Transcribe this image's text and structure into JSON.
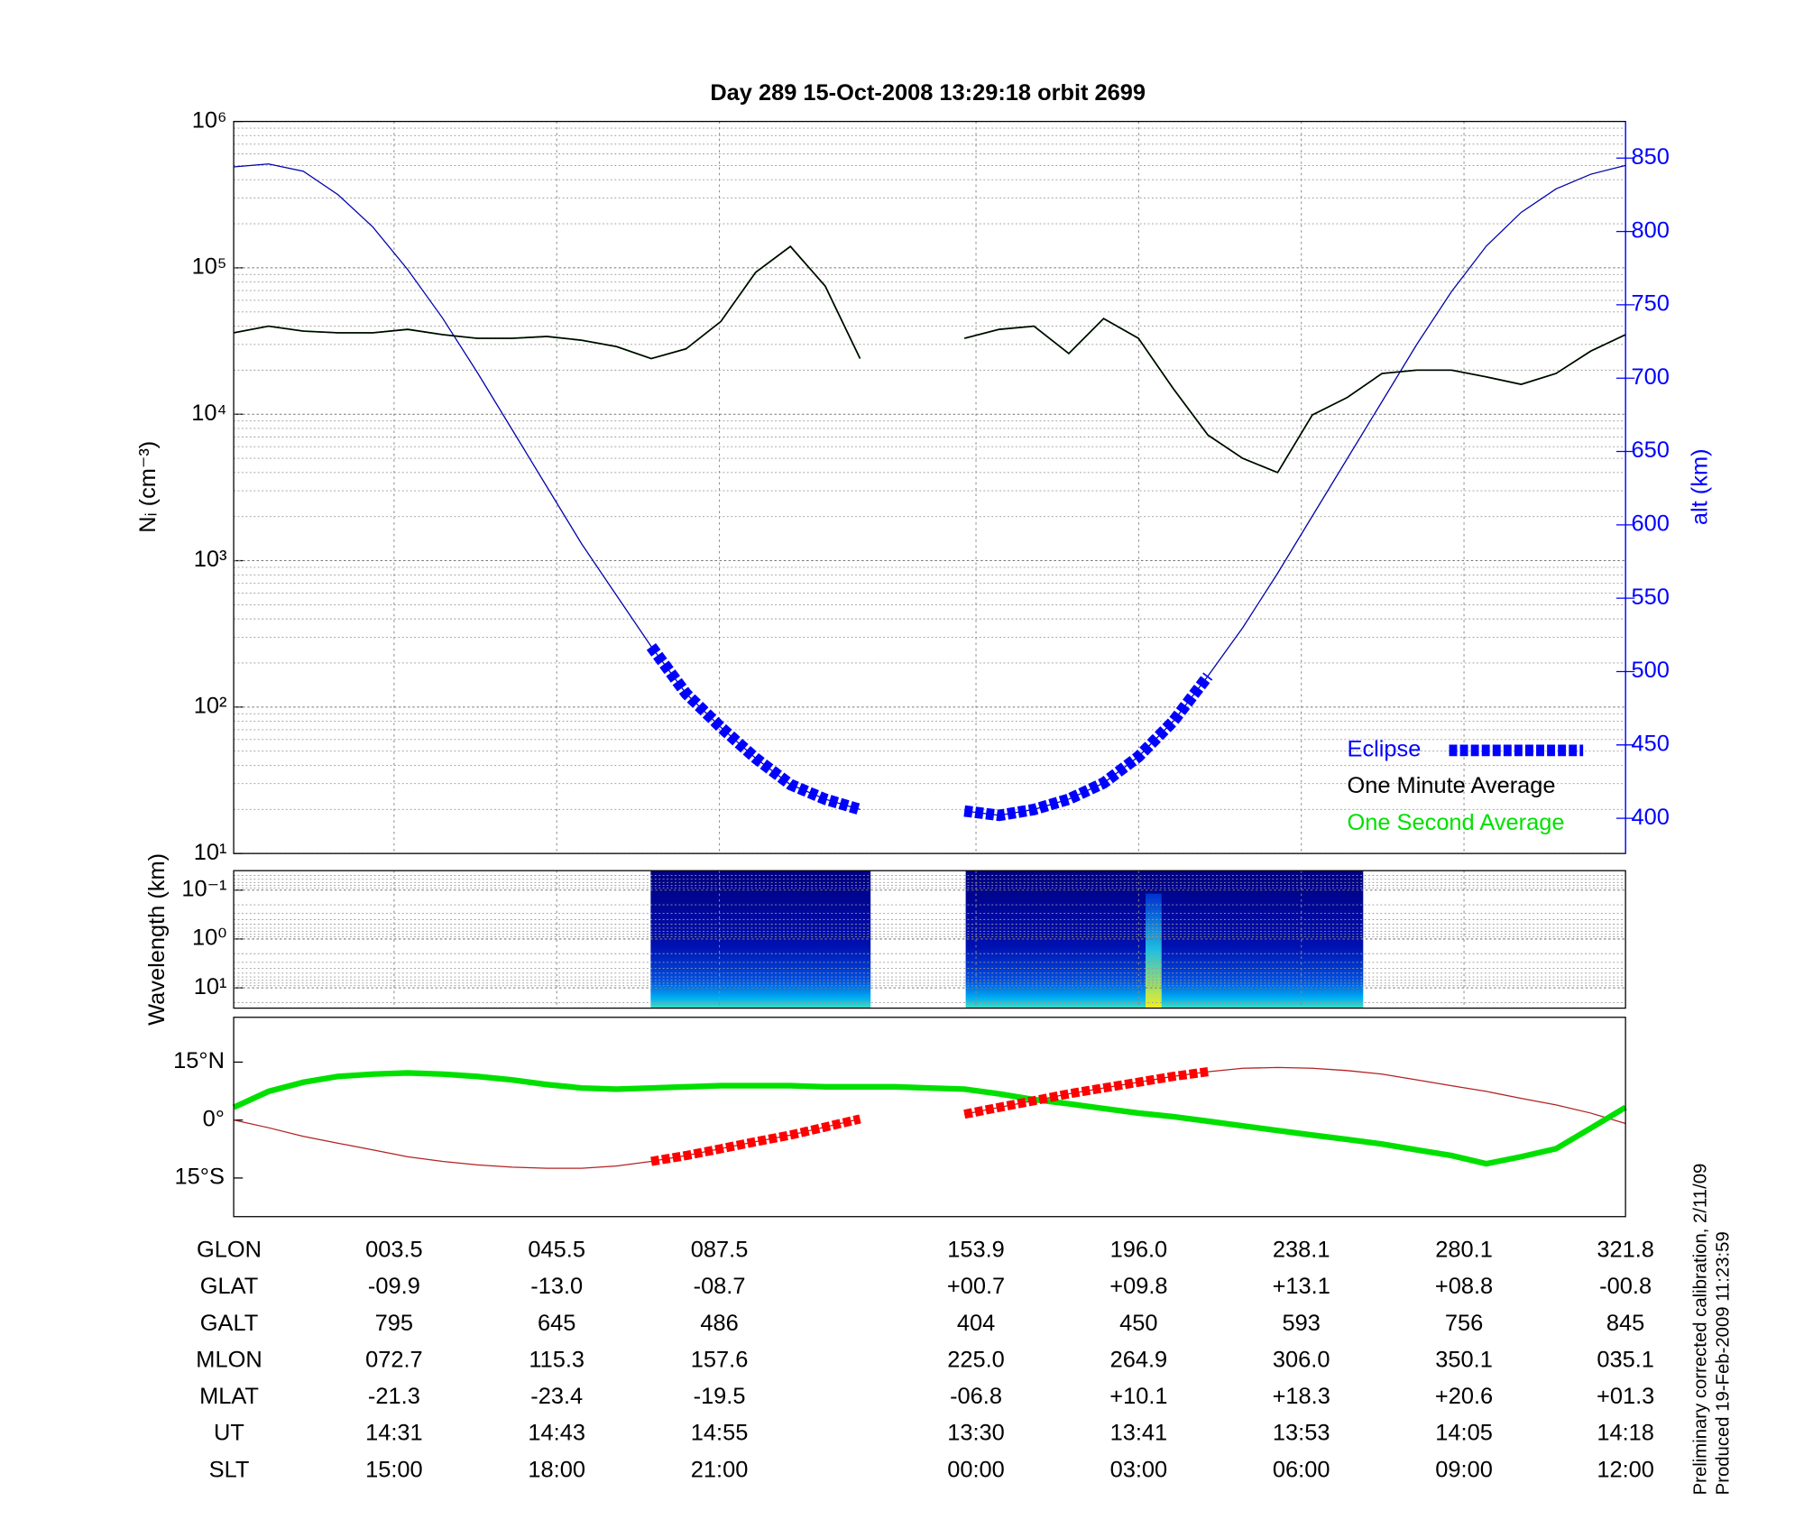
{
  "chart_data": [
    {
      "type": "line",
      "title": "Day 289  15-Oct-2008 13:29:18   orbit 2699",
      "ylabel": "Nᵢ (cm⁻³)",
      "y2label": "alt (km)",
      "ylog": true,
      "ylim": [
        10,
        1000000
      ],
      "yticks": [
        {
          "value": 10,
          "label": "10¹"
        },
        {
          "value": 100,
          "label": "10²"
        },
        {
          "value": 1000,
          "label": "10³"
        },
        {
          "value": 10000,
          "label": "10⁴"
        },
        {
          "value": 100000,
          "label": "10⁵"
        },
        {
          "value": 1000000,
          "label": "10⁶"
        }
      ],
      "y2lim": [
        376,
        875
      ],
      "y2ticks": [
        400,
        450,
        500,
        550,
        600,
        650,
        700,
        750,
        800,
        850
      ],
      "grid": true,
      "legend": "lower right",
      "series": [
        {
          "name": "Eclipse",
          "color": "#0000ff",
          "axis": "y2",
          "values": [
            null,
            null,
            null,
            null,
            null,
            null,
            null,
            null,
            null,
            null,
            null,
            null,
            517,
            485,
            462,
            441,
            423,
            413,
            406,
            null,
            null,
            405,
            402,
            406,
            413,
            424,
            442,
            466,
            497,
            null,
            null,
            null,
            null,
            null,
            null,
            null,
            null,
            null,
            null,
            null,
            null
          ]
        },
        {
          "name": "One Minute Average",
          "color": "#000000",
          "values": [
            36000,
            40000,
            37000,
            36000,
            36000,
            38000,
            35000,
            33000,
            33000,
            34000,
            32000,
            29000,
            24000,
            28000,
            43000,
            93000,
            140000,
            75000,
            24000,
            null,
            null,
            33000,
            38000,
            40000,
            26000,
            45000,
            33000,
            15000,
            7200,
            5000,
            4000,
            9900,
            13000,
            19000,
            20000,
            20000,
            18000,
            16000,
            19000,
            27000,
            35000
          ]
        },
        {
          "name": "One Second Average",
          "color": "#00e000",
          "values": [
            36000,
            40000,
            37000,
            36000,
            36000,
            38000,
            35000,
            33000,
            33000,
            34000,
            32000,
            29000,
            24000,
            28000,
            43000,
            93000,
            140000,
            75000,
            24000,
            null,
            null,
            33000,
            38000,
            40000,
            26000,
            45000,
            33000,
            15000,
            7200,
            5000,
            4000,
            9900,
            13000,
            19000,
            20000,
            20000,
            18000,
            16000,
            19000,
            27000,
            35000
          ]
        },
        {
          "color": "#0000aa",
          "axis": "y2",
          "values": [
            844,
            846,
            841,
            825,
            803,
            774,
            741,
            704,
            665,
            626,
            587,
            552,
            517,
            485,
            462,
            441,
            423,
            413,
            406,
            null,
            null,
            405,
            402,
            406,
            413,
            424,
            442,
            466,
            497,
            530,
            567,
            606,
            645,
            684,
            723,
            759,
            790,
            813,
            829,
            839,
            845
          ]
        }
      ]
    },
    {
      "type": "spectrogram",
      "ylabel": "Wavelength (km)",
      "ylog": true,
      "yinvert": true,
      "ylim": [
        0.04,
        26
      ],
      "yticks": [
        {
          "value": 0.1,
          "label": "10⁻¹"
        },
        {
          "value": 1,
          "label": "10⁰"
        },
        {
          "value": 10,
          "label": "10¹"
        }
      ]
    },
    {
      "type": "map",
      "ylim": [
        -25,
        26.6
      ],
      "yticks": [
        {
          "value": 15,
          "label": "15°N"
        },
        {
          "value": 0,
          "label": "0°"
        },
        {
          "value": -15,
          "label": "15°S"
        }
      ],
      "series": [
        {
          "color": "#b22222",
          "values": [
            0,
            -2,
            -4.2,
            -6,
            -7.7,
            -9.5,
            -10.7,
            -11.6,
            -12.2,
            -12.5,
            -12.5,
            -11.9,
            -10.7,
            -9.2,
            -7.4,
            -5.6,
            -3.9,
            -1.8,
            0.3,
            null,
            null,
            1.5,
            3.3,
            5,
            6.8,
            8.3,
            9.8,
            11.3,
            12.5,
            13.4,
            13.6,
            13.4,
            12.8,
            11.9,
            10.4,
            8.9,
            7.4,
            5.6,
            3.9,
            1.8,
            -0.9
          ]
        },
        {
          "color": "#00e000",
          "values": [
            3.3,
            7.4,
            9.8,
            11.3,
            11.9,
            12.2,
            11.9,
            11.3,
            10.4,
            9.2,
            8.3,
            8,
            8.3,
            8.6,
            8.9,
            8.9,
            8.9,
            8.6,
            8.6,
            8.6,
            8.3,
            8,
            6.8,
            5.3,
            4.2,
            3,
            1.8,
            0.9,
            -0.3,
            -1.5,
            -2.7,
            -3.9,
            -5,
            -6.2,
            -7.7,
            -9.2,
            -11.3,
            -9.5,
            -7.4,
            -2.1,
            3.3
          ]
        },
        {
          "color": "#ff0000",
          "values": [
            null,
            null,
            null,
            null,
            null,
            null,
            null,
            null,
            null,
            null,
            null,
            null,
            -10.7,
            -9.2,
            -7.4,
            -5.6,
            -3.9,
            -1.8,
            0.3,
            null,
            null,
            1.5,
            3.3,
            5,
            6.8,
            8.3,
            9.8,
            11.3,
            12.5,
            null,
            null,
            null,
            null,
            null,
            null,
            null,
            null,
            null,
            null,
            null,
            null
          ]
        }
      ]
    }
  ],
  "table": {
    "rows": [
      {
        "label": "GLON",
        "values": [
          "003.5",
          "045.5",
          "087.5",
          "153.9",
          "196.0",
          "238.1",
          "280.1",
          "321.8"
        ]
      },
      {
        "label": "GLAT",
        "values": [
          "-09.9",
          "-13.0",
          "-08.7",
          "+00.7",
          "+09.8",
          "+13.1",
          "+08.8",
          "-00.8"
        ]
      },
      {
        "label": "GALT",
        "values": [
          "795",
          "645",
          "486",
          "404",
          "450",
          "593",
          "756",
          "845"
        ]
      },
      {
        "label": "MLON",
        "values": [
          "072.7",
          "115.3",
          "157.6",
          "225.0",
          "264.9",
          "306.0",
          "350.1",
          "035.1"
        ]
      },
      {
        "label": "MLAT",
        "values": [
          "-21.3",
          "-23.4",
          "-19.5",
          "-06.8",
          "+10.1",
          "+18.3",
          "+20.6",
          "+01.3"
        ]
      },
      {
        "label": "UT",
        "values": [
          "14:31",
          "14:43",
          "14:55",
          "13:30",
          "13:41",
          "13:53",
          "14:05",
          "14:18"
        ]
      },
      {
        "label": "SLT",
        "values": [
          "15:00",
          "18:00",
          "21:00",
          "00:00",
          "03:00",
          "06:00",
          "09:00",
          "12:00"
        ]
      }
    ]
  },
  "notes": [
    "Preliminary corrected calibration, 2/11/09",
    "Produced 19-Feb-2009 11:23:59"
  ]
}
